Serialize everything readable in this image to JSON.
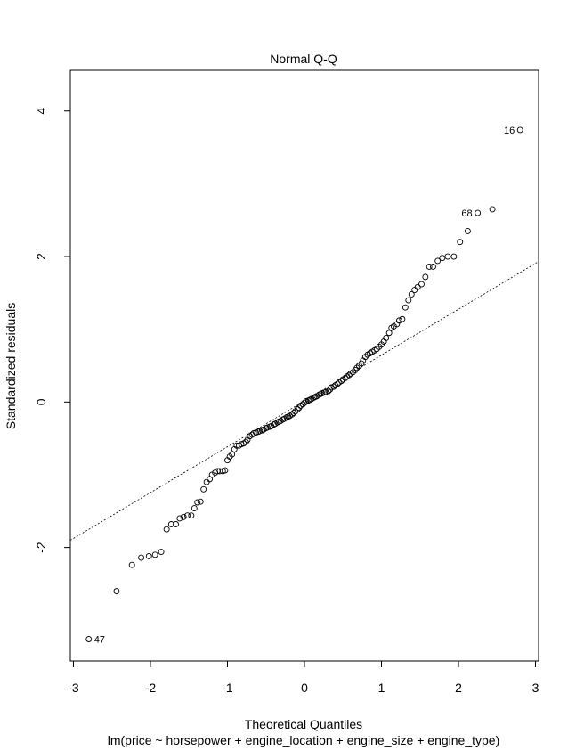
{
  "chart_data": {
    "type": "scatter",
    "title": "Normal Q-Q",
    "xlabel": "Theoretical Quantiles",
    "ylabel": "Standardized residuals",
    "subtitle": "lm(price ~ horsepower + engine_location + engine_size + engine_type)",
    "xlim": [
      -3.04,
      3.04
    ],
    "ylim": [
      -3.56,
      4.56
    ],
    "x_ticks": [
      -3,
      -2,
      -1,
      0,
      1,
      2,
      3
    ],
    "y_ticks": [
      -2,
      0,
      2,
      4
    ],
    "reference_line": {
      "x1": -2.8,
      "y1": -1.75,
      "x2": 2.8,
      "y2": 1.78,
      "style": "dotted"
    },
    "labeled_points": [
      {
        "label": "16",
        "x": 2.8,
        "y": 3.74
      },
      {
        "label": "68",
        "x": 2.25,
        "y": 2.6
      },
      {
        "label": "47",
        "x": -2.8,
        "y": -3.26
      }
    ],
    "points": [
      [
        -2.8,
        -3.26
      ],
      [
        -2.44,
        -2.6
      ],
      [
        -2.24,
        -2.24
      ],
      [
        -2.12,
        -2.14
      ],
      [
        -2.02,
        -2.12
      ],
      [
        -1.94,
        -2.1
      ],
      [
        -1.86,
        -2.06
      ],
      [
        -1.79,
        -1.75
      ],
      [
        -1.73,
        -1.68
      ],
      [
        -1.67,
        -1.68
      ],
      [
        -1.62,
        -1.6
      ],
      [
        -1.57,
        -1.58
      ],
      [
        -1.52,
        -1.56
      ],
      [
        -1.47,
        -1.56
      ],
      [
        -1.43,
        -1.46
      ],
      [
        -1.39,
        -1.38
      ],
      [
        -1.35,
        -1.37
      ],
      [
        -1.31,
        -1.2
      ],
      [
        -1.27,
        -1.1
      ],
      [
        -1.23,
        -1.06
      ],
      [
        -1.2,
        -1.0
      ],
      [
        -1.16,
        -0.97
      ],
      [
        -1.13,
        -0.95
      ],
      [
        -1.1,
        -0.95
      ],
      [
        -1.06,
        -0.95
      ],
      [
        -1.03,
        -0.94
      ],
      [
        -1.0,
        -0.8
      ],
      [
        -0.97,
        -0.75
      ],
      [
        -0.94,
        -0.72
      ],
      [
        -0.91,
        -0.65
      ],
      [
        -0.88,
        -0.6
      ],
      [
        -0.85,
        -0.6
      ],
      [
        -0.82,
        -0.58
      ],
      [
        -0.79,
        -0.57
      ],
      [
        -0.76,
        -0.55
      ],
      [
        -0.74,
        -0.52
      ],
      [
        -0.71,
        -0.47
      ],
      [
        -0.68,
        -0.45
      ],
      [
        -0.66,
        -0.43
      ],
      [
        -0.63,
        -0.42
      ],
      [
        -0.6,
        -0.41
      ],
      [
        -0.58,
        -0.4
      ],
      [
        -0.55,
        -0.39
      ],
      [
        -0.53,
        -0.38
      ],
      [
        -0.5,
        -0.36
      ],
      [
        -0.48,
        -0.35
      ],
      [
        -0.45,
        -0.34
      ],
      [
        -0.43,
        -0.33
      ],
      [
        -0.4,
        -0.31
      ],
      [
        -0.38,
        -0.3
      ],
      [
        -0.35,
        -0.28
      ],
      [
        -0.33,
        -0.27
      ],
      [
        -0.31,
        -0.26
      ],
      [
        -0.28,
        -0.24
      ],
      [
        -0.26,
        -0.23
      ],
      [
        -0.23,
        -0.21
      ],
      [
        -0.21,
        -0.2
      ],
      [
        -0.19,
        -0.19
      ],
      [
        -0.16,
        -0.17
      ],
      [
        -0.14,
        -0.15
      ],
      [
        -0.12,
        -0.13
      ],
      [
        -0.09,
        -0.1
      ],
      [
        -0.07,
        -0.08
      ],
      [
        -0.05,
        -0.05
      ],
      [
        -0.02,
        -0.03
      ],
      [
        0.0,
        -0.01
      ],
      [
        0.02,
        0.01
      ],
      [
        0.05,
        0.02
      ],
      [
        0.07,
        0.03
      ],
      [
        0.09,
        0.04
      ],
      [
        0.12,
        0.06
      ],
      [
        0.14,
        0.07
      ],
      [
        0.16,
        0.08
      ],
      [
        0.19,
        0.1
      ],
      [
        0.21,
        0.11
      ],
      [
        0.23,
        0.12
      ],
      [
        0.26,
        0.13
      ],
      [
        0.28,
        0.14
      ],
      [
        0.31,
        0.15
      ],
      [
        0.33,
        0.17
      ],
      [
        0.35,
        0.2
      ],
      [
        0.38,
        0.21
      ],
      [
        0.4,
        0.23
      ],
      [
        0.43,
        0.25
      ],
      [
        0.45,
        0.27
      ],
      [
        0.48,
        0.29
      ],
      [
        0.5,
        0.31
      ],
      [
        0.53,
        0.33
      ],
      [
        0.55,
        0.35
      ],
      [
        0.58,
        0.37
      ],
      [
        0.6,
        0.39
      ],
      [
        0.63,
        0.41
      ],
      [
        0.66,
        0.44
      ],
      [
        0.68,
        0.47
      ],
      [
        0.71,
        0.5
      ],
      [
        0.74,
        0.53
      ],
      [
        0.76,
        0.57
      ],
      [
        0.79,
        0.62
      ],
      [
        0.82,
        0.65
      ],
      [
        0.85,
        0.67
      ],
      [
        0.88,
        0.69
      ],
      [
        0.91,
        0.71
      ],
      [
        0.94,
        0.73
      ],
      [
        0.97,
        0.76
      ],
      [
        1.0,
        0.79
      ],
      [
        1.03,
        0.83
      ],
      [
        1.06,
        0.88
      ],
      [
        1.1,
        0.95
      ],
      [
        1.13,
        1.02
      ],
      [
        1.16,
        1.04
      ],
      [
        1.2,
        1.07
      ],
      [
        1.23,
        1.12
      ],
      [
        1.27,
        1.14
      ],
      [
        1.31,
        1.3
      ],
      [
        1.35,
        1.4
      ],
      [
        1.39,
        1.48
      ],
      [
        1.43,
        1.54
      ],
      [
        1.47,
        1.58
      ],
      [
        1.52,
        1.62
      ],
      [
        1.57,
        1.72
      ],
      [
        1.62,
        1.86
      ],
      [
        1.67,
        1.86
      ],
      [
        1.73,
        1.94
      ],
      [
        1.79,
        1.98
      ],
      [
        1.86,
        2.0
      ],
      [
        1.94,
        2.0
      ],
      [
        2.02,
        2.2
      ],
      [
        2.12,
        2.35
      ],
      [
        2.25,
        2.6
      ],
      [
        2.44,
        2.65
      ],
      [
        2.8,
        3.74
      ]
    ]
  }
}
